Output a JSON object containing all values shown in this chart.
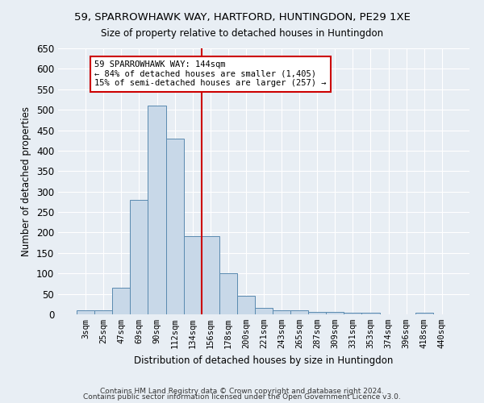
{
  "title1": "59, SPARROWHAWK WAY, HARTFORD, HUNTINGDON, PE29 1XE",
  "title2": "Size of property relative to detached houses in Huntingdon",
  "xlabel": "Distribution of detached houses by size in Huntingdon",
  "ylabel": "Number of detached properties",
  "footer1": "Contains HM Land Registry data © Crown copyright and database right 2024.",
  "footer2": "Contains public sector information licensed under the Open Government Licence v3.0.",
  "categories": [
    "3sqm",
    "25sqm",
    "47sqm",
    "69sqm",
    "90sqm",
    "112sqm",
    "134sqm",
    "156sqm",
    "178sqm",
    "200sqm",
    "221sqm",
    "243sqm",
    "265sqm",
    "287sqm",
    "309sqm",
    "331sqm",
    "353sqm",
    "374sqm",
    "396sqm",
    "418sqm",
    "440sqm"
  ],
  "values": [
    10,
    10,
    65,
    280,
    510,
    430,
    192,
    192,
    100,
    46,
    16,
    10,
    10,
    5,
    5,
    4,
    4,
    0,
    0,
    4,
    0
  ],
  "bar_color": "#c8d8e8",
  "bar_edge_color": "#5a8ab0",
  "marker_line_color": "#cc0000",
  "annotation_line1": "59 SPARROWHAWK WAY: 144sqm",
  "annotation_line2": "← 84% of detached houses are smaller (1,405)",
  "annotation_line3": "15% of semi-detached houses are larger (257) →",
  "annotation_box_color": "#ffffff",
  "annotation_box_edgecolor": "#cc0000",
  "ylim": [
    0,
    650
  ],
  "background_color": "#e8eef4",
  "grid_color": "#ffffff",
  "yticks": [
    0,
    50,
    100,
    150,
    200,
    250,
    300,
    350,
    400,
    450,
    500,
    550,
    600,
    650
  ]
}
